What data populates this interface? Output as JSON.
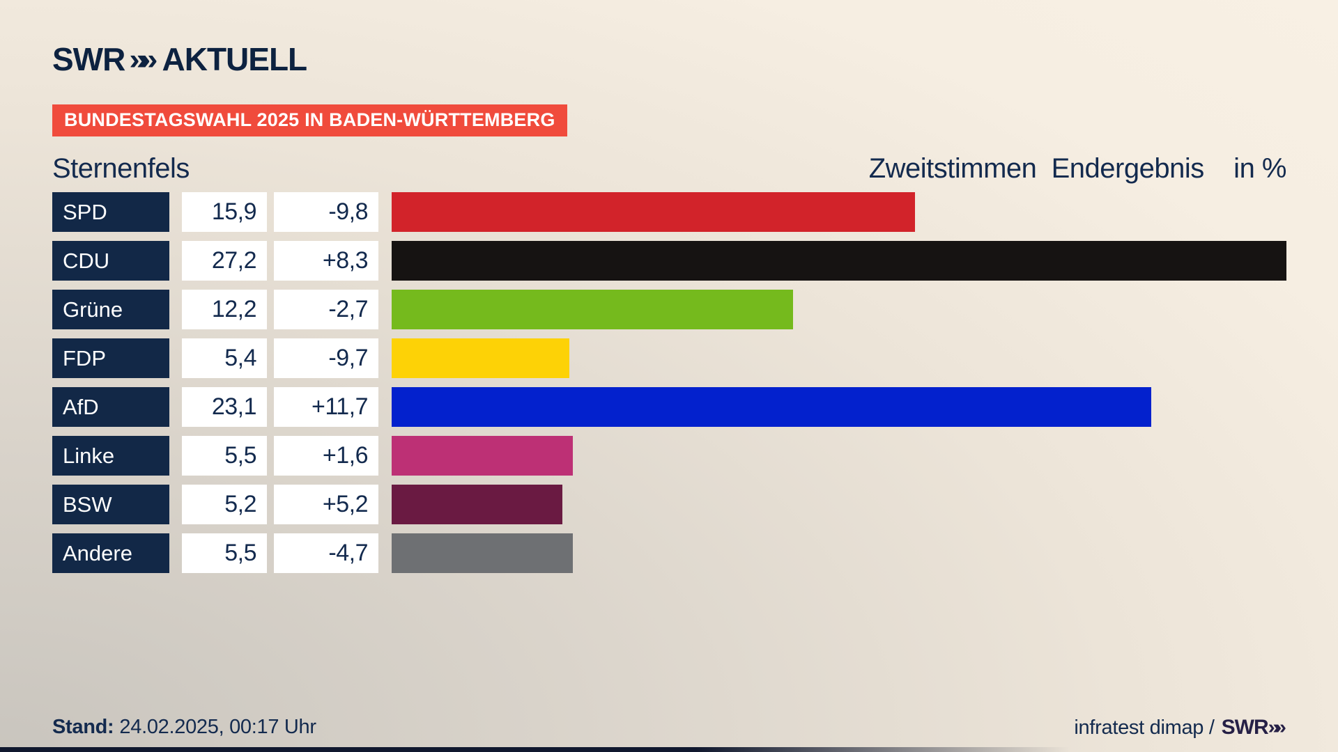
{
  "brand": {
    "logo_text": "SWR",
    "logo_chevron": "»»",
    "logo_suffix": "AKTUELL"
  },
  "header": {
    "badge": "BUNDESTAGSWAHL 2025 IN BADEN-WÜRTTEMBERG",
    "region": "Sternenfels",
    "title_right": "Zweitstimmen  Endergebnis    in %"
  },
  "footer": {
    "stand_label": "Stand:",
    "stand_value": "24.02.2025, 00:17 Uhr",
    "source_text": "infratest dimap /",
    "source_brand": "SWR",
    "source_brand_chevron": "»»"
  },
  "colors": {
    "text_navy": "#132a4e",
    "label_box_navy": "#122847",
    "badge_red": "#f04b3c",
    "value_box_white": "#ffffff",
    "logo_navy": "#0d2240",
    "footer_brand_purple": "#262046"
  },
  "chart_data": {
    "type": "bar",
    "orientation": "horizontal",
    "title": "Zweitstimmen Endergebnis in %",
    "region": "Sternenfels",
    "categories": [
      "SPD",
      "CDU",
      "Grüne",
      "FDP",
      "AfD",
      "Linke",
      "BSW",
      "Andere"
    ],
    "values": [
      15.9,
      27.2,
      12.2,
      5.4,
      23.1,
      5.5,
      5.2,
      5.5
    ],
    "value_labels": [
      "15,9",
      "27,2",
      "12,2",
      "5,4",
      "23,1",
      "5,5",
      "5,2",
      "5,5"
    ],
    "deltas": [
      -9.8,
      8.3,
      -2.7,
      -9.7,
      11.7,
      1.6,
      5.2,
      -4.7
    ],
    "delta_labels": [
      "-9,8",
      "+8,3",
      "-2,7",
      "-9,7",
      "+11,7",
      "+1,6",
      "+5,2",
      "-4,7"
    ],
    "bar_colors": [
      "#d2232a",
      "#161312",
      "#75ba1d",
      "#fdd206",
      "#0321cd",
      "#bd3075",
      "#6a1a42",
      "#6e7073"
    ],
    "scale_max": 27.2,
    "xlim": [
      0,
      27.2
    ],
    "grid": false,
    "legend": false
  }
}
